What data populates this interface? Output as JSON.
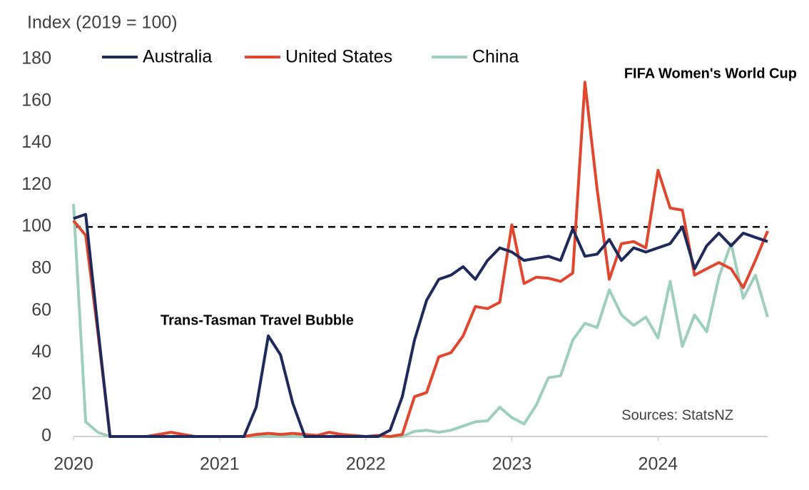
{
  "chart_data": {
    "type": "line",
    "y_label": "Index (2019 = 100)",
    "categories": [
      "2020",
      null,
      null,
      null,
      null,
      null,
      null,
      null,
      null,
      null,
      null,
      null,
      "2021",
      null,
      null,
      null,
      null,
      null,
      null,
      null,
      null,
      null,
      null,
      null,
      "2022",
      null,
      null,
      null,
      null,
      null,
      null,
      null,
      null,
      null,
      null,
      null,
      "2023",
      null,
      null,
      null,
      null,
      null,
      null,
      null,
      null,
      null,
      null,
      null,
      "2024",
      null,
      null,
      null,
      null,
      null,
      null,
      null,
      null,
      null
    ],
    "series": [
      {
        "name": "Australia",
        "color": "#1f2a5c",
        "values": [
          104,
          106,
          52,
          0,
          0,
          0,
          0,
          0,
          0,
          0,
          0,
          0,
          0,
          0,
          0,
          14,
          48,
          39,
          16,
          0,
          0,
          0,
          0,
          0,
          0,
          0,
          3,
          19,
          46,
          65,
          75,
          77,
          81,
          75,
          84,
          90,
          88,
          84,
          85,
          86,
          84,
          99,
          86,
          87,
          94,
          84,
          90,
          88,
          90,
          92,
          100,
          80,
          91,
          97,
          91,
          97,
          95,
          93
        ]
      },
      {
        "name": "United States",
        "color": "#e0472e",
        "values": [
          103,
          96,
          50,
          0,
          0,
          0,
          0,
          1,
          2,
          1,
          0,
          0,
          0,
          0,
          0,
          1,
          1.5,
          1,
          1.5,
          1,
          0.5,
          2,
          1,
          0.5,
          0,
          0.5,
          0,
          1,
          19,
          21,
          38,
          40,
          48,
          62,
          61,
          64,
          101,
          73,
          76,
          75.5,
          74,
          78,
          169,
          118,
          75,
          92,
          93,
          90,
          127,
          109,
          108,
          77,
          80,
          83,
          80,
          71,
          84,
          98
        ]
      },
      {
        "name": "China",
        "color": "#9ecfbd",
        "values": [
          111,
          7,
          2,
          0,
          0,
          0,
          0,
          0,
          0,
          0,
          0,
          0,
          0,
          0,
          0,
          0,
          0,
          0,
          0,
          0,
          0,
          0,
          0,
          0,
          0,
          0,
          0,
          0,
          2.5,
          3,
          2,
          3,
          5,
          7,
          7.5,
          14,
          9,
          6,
          15,
          28,
          29,
          46,
          54,
          52,
          70,
          58,
          53,
          57,
          47,
          74,
          43,
          58,
          50,
          76,
          92,
          66,
          77,
          57
        ]
      }
    ],
    "ylim": [
      0,
      180
    ],
    "yticks": [
      0,
      20,
      40,
      60,
      80,
      100,
      120,
      140,
      160,
      180
    ],
    "reference_line": 100,
    "annotations": [
      "Trans-Tasman Travel Bubble",
      "FIFA Women's World Cup"
    ],
    "source": "Sources: StatsNZ",
    "legend": "top"
  }
}
